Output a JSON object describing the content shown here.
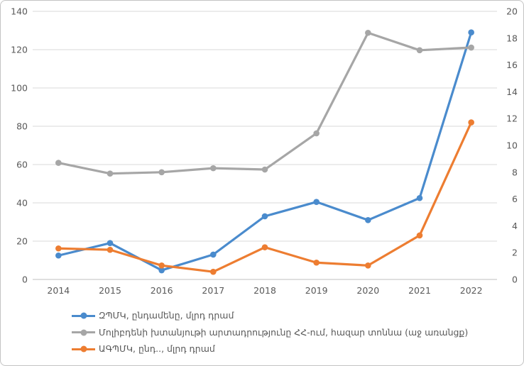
{
  "chart_data": {
    "type": "line",
    "title": "",
    "xlabel": "",
    "ylabel_left": "",
    "ylabel_right": "",
    "grid": true,
    "legend_position": "bottom-left",
    "x": [
      "2014",
      "2015",
      "2016",
      "2017",
      "2018",
      "2019",
      "2020",
      "2021",
      "2022"
    ],
    "series": [
      {
        "name": "ԶՊՄԿ, ընդամենը, մլրդ դրամ",
        "axis": "left",
        "color": "#4a8bcd",
        "values": [
          12.5,
          19.0,
          4.8,
          13.0,
          33.0,
          40.5,
          31.0,
          42.5,
          129.0
        ]
      },
      {
        "name": "Մոլիբդենի խտանյութի արտադրությունը ՀՀ-ում, հազար տոննա (աջ առանցք)",
        "axis": "right",
        "color": "#a6a6a6",
        "values": [
          8.7,
          7.9,
          8.0,
          8.3,
          8.2,
          10.9,
          18.4,
          17.1,
          17.3
        ]
      },
      {
        "name": "ԱԳՊՄԿ, ընդ.., մլրդ դրամ",
        "axis": "left",
        "color": "#ed7d31",
        "values": [
          16.2,
          15.5,
          7.3,
          4.0,
          16.8,
          8.8,
          7.3,
          23.0,
          82.0
        ]
      }
    ],
    "left_axis": {
      "min": 0,
      "max": 140,
      "step": 20,
      "ticks": [
        0,
        20,
        40,
        60,
        80,
        100,
        120,
        140
      ]
    },
    "right_axis": {
      "min": 0,
      "max": 20,
      "step": 2,
      "ticks": [
        0,
        2,
        4,
        6,
        8,
        10,
        12,
        14,
        16,
        18,
        20
      ]
    },
    "style": {
      "gridline_color": "#d9d9d9",
      "axis_line_color": "#bfbfbf",
      "tick_label_color": "#595959",
      "background": "#ffffff",
      "frame_border_color": "#c3c3c3"
    }
  }
}
